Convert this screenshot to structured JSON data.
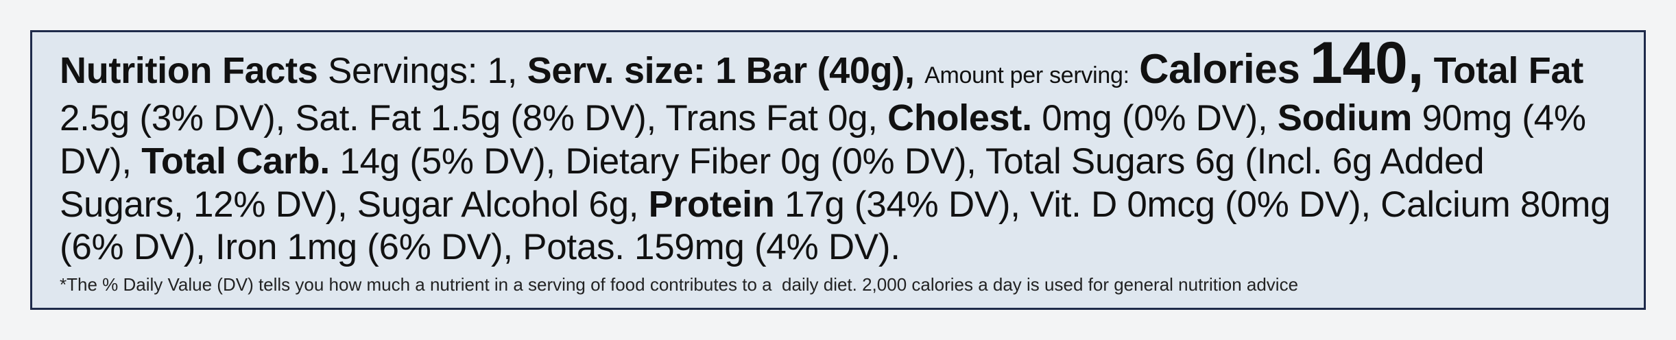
{
  "panel": {
    "segments": [
      {
        "text": "Nutrition Facts",
        "style": "bold"
      },
      {
        "text": "Servings: 1,",
        "style": "regular"
      },
      {
        "text": "Serv. size: 1 Bar (40g),",
        "style": "bold"
      },
      {
        "text": "Amount per serving:",
        "style": "small"
      },
      {
        "text": "Calories",
        "style": "heading"
      },
      {
        "text": "140,",
        "style": "large"
      },
      {
        "text": "Total Fat",
        "style": "bold"
      },
      {
        "text": "2.5g (3% DV), Sat. Fat 1.5g (8% DV), Trans Fat 0g,",
        "style": "regular"
      },
      {
        "text": "Cholest.",
        "style": "bold"
      },
      {
        "text": "0mg (0% DV),",
        "style": "regular"
      },
      {
        "text": "Sodium",
        "style": "bold"
      },
      {
        "text": "90mg (4% DV),",
        "style": "regular"
      },
      {
        "text": "Total Carb.",
        "style": "bold"
      },
      {
        "text": "14g (5% DV), Dietary Fiber 0g (0% DV), Total Sugars 6g (Incl. 6g Added Sugars, 12% DV), Sugar Alcohol 6g,",
        "style": "regular"
      },
      {
        "text": "Protein",
        "style": "bold"
      },
      {
        "text": "17g (34% DV), Vit. D 0mcg (0% DV), Calcium 80mg (6% DV), Iron 1mg (6% DV), Potas. 159mg (4% DV).",
        "style": "regular"
      }
    ],
    "footnote": "*The % Daily Value (DV) tells you how much a nutrient in a serving of food contributes to a  daily diet. 2,000 calories a day is used for general nutrition advice"
  }
}
